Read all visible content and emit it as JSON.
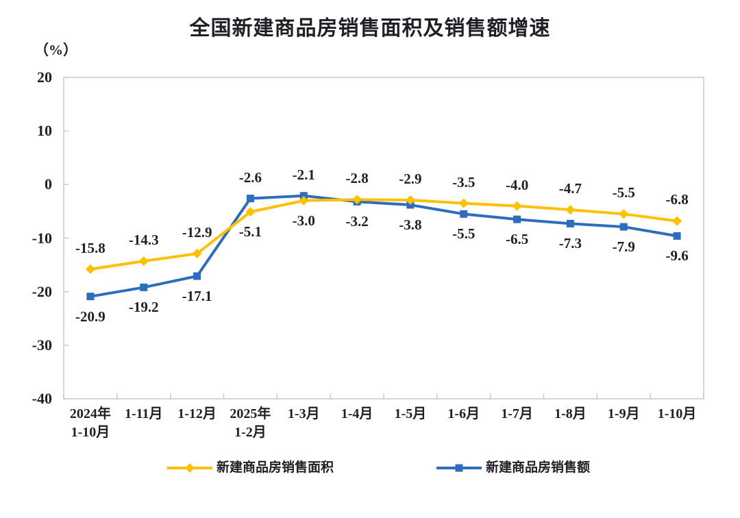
{
  "chart_data": {
    "type": "line",
    "title": "全国新建商品房销售面积及销售额增速",
    "unit_label": "（%）",
    "xlabel": "",
    "ylabel": "（%）",
    "ylim": [
      -40,
      20
    ],
    "y_ticks": [
      20,
      10,
      0,
      -10,
      -20,
      -30,
      -40
    ],
    "grid": false,
    "legend_position": "bottom",
    "categories": [
      "2024年1-10月",
      "1-11月",
      "1-12月",
      "2025年1-2月",
      "1-3月",
      "1-4月",
      "1-5月",
      "1-6月",
      "1-7月",
      "1-8月",
      "1-9月",
      "1-10月"
    ],
    "category_lines": [
      [
        "2024年",
        "1-10月"
      ],
      [
        "1-11月"
      ],
      [
        "1-12月"
      ],
      [
        "2025年",
        "1-2月"
      ],
      [
        "1-3月"
      ],
      [
        "1-4月"
      ],
      [
        "1-5月"
      ],
      [
        "1-6月"
      ],
      [
        "1-7月"
      ],
      [
        "1-8月"
      ],
      [
        "1-9月"
      ],
      [
        "1-10月"
      ]
    ],
    "series": [
      {
        "name": "新建商品房销售面积",
        "color": "#FFC000",
        "marker": "diamond",
        "values": [
          -15.8,
          -14.3,
          -12.9,
          -5.1,
          -3.0,
          -2.8,
          -2.9,
          -3.5,
          -4.0,
          -4.7,
          -5.5,
          -6.8
        ]
      },
      {
        "name": "新建商品房销售额",
        "color": "#2D6CBF",
        "marker": "square",
        "values": [
          -20.9,
          -19.2,
          -17.1,
          -2.6,
          -2.1,
          -3.2,
          -3.8,
          -5.5,
          -6.5,
          -7.3,
          -7.9,
          -9.6
        ]
      }
    ]
  },
  "colors": {
    "axis_border": "#C9C9C9",
    "tick": "#C9C9C9",
    "text": "#1F1F26",
    "background": "#FFFFFF"
  }
}
